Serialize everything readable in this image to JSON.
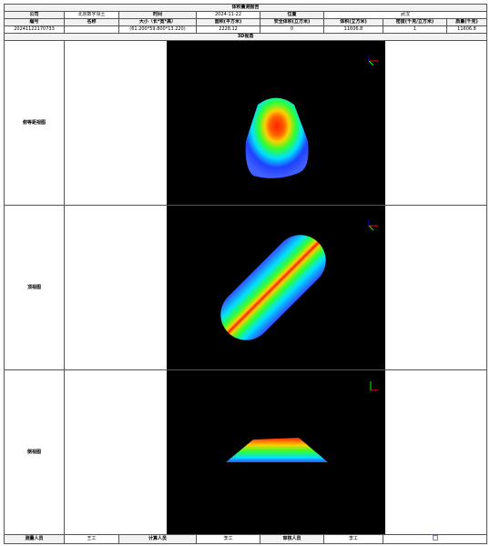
{
  "title": "体积量测报告",
  "info": {
    "company_label": "公司",
    "company": "北京数字领土",
    "time_label": "时间",
    "time": "2024-11-22",
    "location_label": "位置",
    "location": "武汉"
  },
  "table": {
    "headers": [
      "编号",
      "名称",
      "大小（长*宽*高）",
      "面积(平方米)",
      "安全体积(立方米)",
      "体积(立方米)",
      "密度(千克/立方米)",
      "质量(千克)"
    ],
    "row": [
      "20241122170733",
      "",
      "(61.200*59.800*13.220)",
      "2228.12",
      "0",
      "11606.8",
      "1",
      "11606.8"
    ]
  },
  "section": "3D视角",
  "views": [
    "俯等距视图",
    "顶视图",
    "侧视图"
  ],
  "footer": {
    "measurer_label": "测量人员",
    "measurer": "王工",
    "calculator_label": "计算人员",
    "calculator": "李工",
    "reviewer_label": "审核人员",
    "reviewer": "李工"
  }
}
